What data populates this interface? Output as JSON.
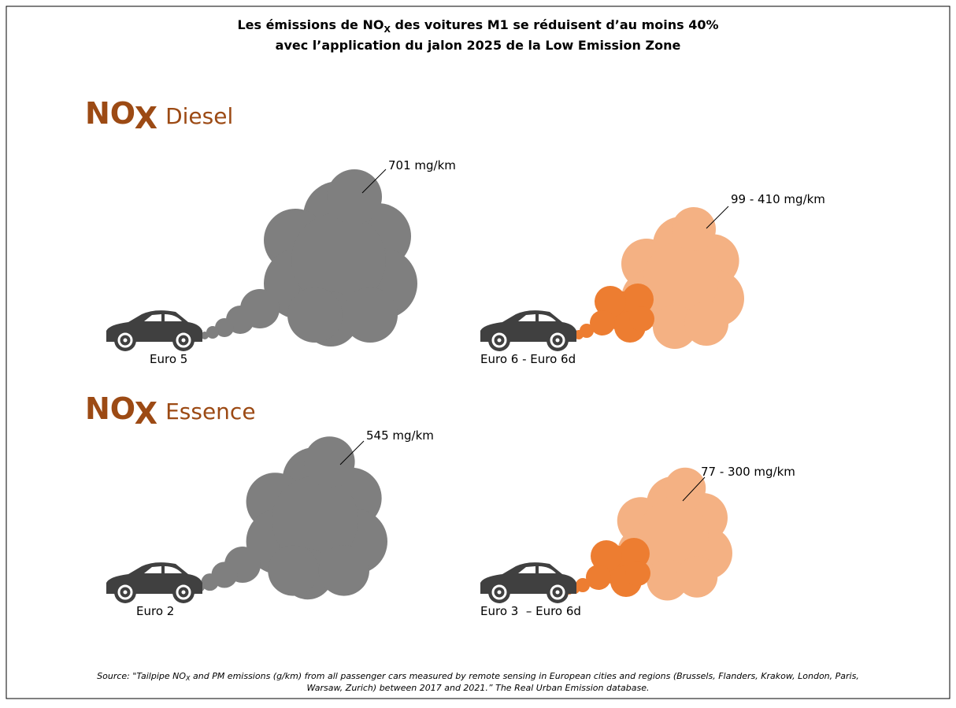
{
  "title": {
    "line1_before": "Les émissions de NO",
    "line1_sub": "X",
    "line1_after": " des voitures M1 se réduisent d’au moins 40%",
    "line2": "avec l’application du jalon 2025 de la Low Emission Zone"
  },
  "sections": [
    {
      "heading_main": "NO",
      "heading_sub": "X",
      "heading_fuel": "Diesel",
      "panels": [
        {
          "label": "Euro 5",
          "emission": "701 mg/km"
        },
        {
          "label": "Euro 6 - Euro 6d",
          "emission": "99 - 410 mg/km"
        }
      ]
    },
    {
      "heading_main": "NO",
      "heading_sub": "X",
      "heading_fuel": "Essence",
      "panels": [
        {
          "label": "Euro 2",
          "emission": "545 mg/km"
        },
        {
          "label": "Euro 3  – Euro 6d",
          "emission": "77 - 300 mg/km"
        }
      ]
    }
  ],
  "source": {
    "before": "Source: \"Tailpipe NO",
    "sub": "X",
    "after": " and PM emissions (g/km) from all passenger cars measured by remote sensing in European cities and regions (Brussels, Flanders, Krakow, London, Paris,",
    "line2": "Warsaw, Zurich) between 2017 and 2021.” The Real Urban Emission database."
  }
}
